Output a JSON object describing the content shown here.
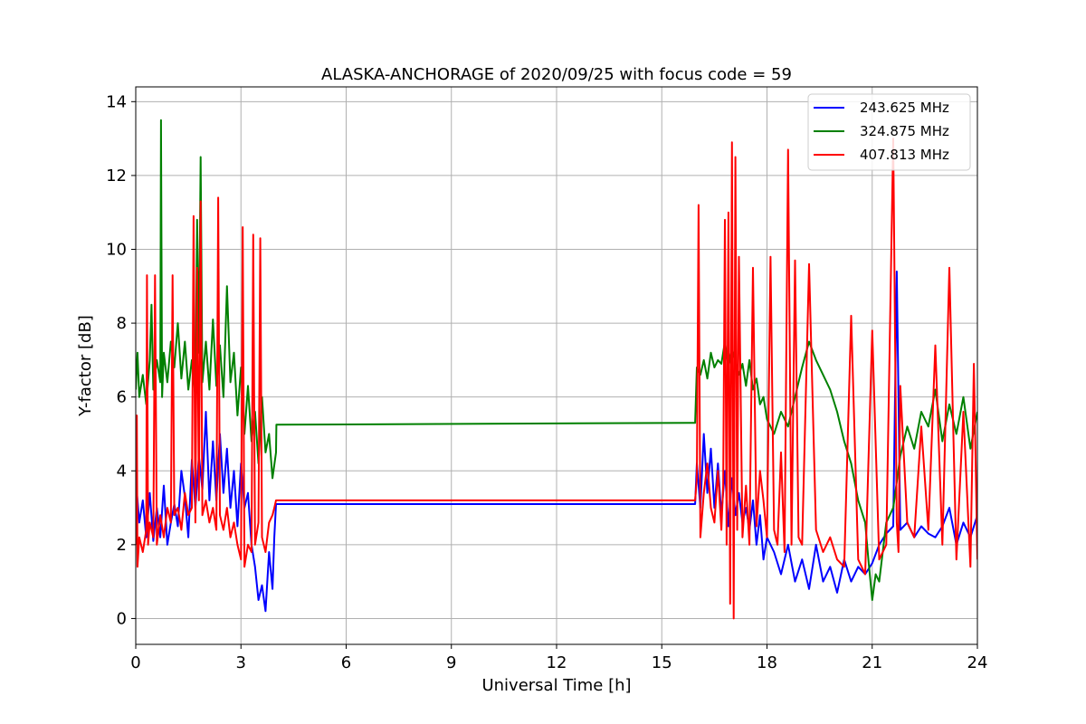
{
  "chart_data": {
    "type": "line",
    "title": "ALASKA-ANCHORAGE of 2020/09/25 with focus code = 59",
    "xlabel": "Universal Time [h]",
    "ylabel": "Y-factor [dB]",
    "xlim": [
      0,
      24
    ],
    "ylim": [
      -0.7,
      14.4
    ],
    "xticks": [
      0,
      3,
      6,
      9,
      12,
      15,
      18,
      21,
      24
    ],
    "yticks": [
      0,
      2,
      4,
      6,
      8,
      10,
      12,
      14
    ],
    "grid": true,
    "legend_position": "top-right",
    "series": [
      {
        "name": "243.625 MHz",
        "color": "#0000ff",
        "x": [
          0.0,
          0.1,
          0.2,
          0.3,
          0.4,
          0.5,
          0.6,
          0.7,
          0.8,
          0.9,
          1.0,
          1.1,
          1.2,
          1.3,
          1.4,
          1.5,
          1.6,
          1.7,
          1.8,
          1.9,
          2.0,
          2.1,
          2.2,
          2.3,
          2.4,
          2.5,
          2.6,
          2.7,
          2.8,
          2.9,
          3.0,
          3.1,
          3.2,
          3.3,
          3.4,
          3.5,
          3.6,
          3.7,
          3.8,
          3.9,
          3.95,
          4.0,
          15.95,
          16.0,
          16.1,
          16.2,
          16.3,
          16.4,
          16.5,
          16.6,
          16.7,
          16.8,
          16.9,
          17.0,
          17.1,
          17.2,
          17.3,
          17.4,
          17.5,
          17.6,
          17.7,
          17.8,
          17.9,
          18.0,
          18.2,
          18.4,
          18.6,
          18.8,
          19.0,
          19.2,
          19.4,
          19.6,
          19.8,
          20.0,
          20.2,
          20.4,
          20.6,
          20.8,
          21.0,
          21.2,
          21.4,
          21.6,
          21.7,
          21.8,
          22.0,
          22.2,
          22.4,
          22.6,
          22.8,
          23.0,
          23.2,
          23.4,
          23.6,
          23.8,
          24.0
        ],
        "y": [
          3.8,
          2.6,
          3.2,
          2.2,
          3.4,
          2.1,
          3.0,
          2.2,
          3.6,
          2.0,
          2.6,
          3.1,
          2.5,
          4.0,
          3.3,
          2.2,
          4.3,
          3.0,
          4.4,
          3.5,
          5.6,
          3.2,
          4.8,
          3.2,
          5.0,
          3.4,
          4.6,
          3.0,
          4.0,
          2.5,
          4.2,
          3.0,
          3.4,
          2.0,
          1.4,
          0.5,
          0.9,
          0.2,
          1.8,
          0.8,
          2.2,
          3.1,
          3.1,
          4.2,
          3.0,
          5.0,
          3.4,
          4.6,
          3.0,
          4.2,
          2.8,
          4.0,
          2.5,
          3.8,
          2.8,
          3.4,
          2.6,
          3.0,
          2.4,
          3.2,
          2.0,
          2.8,
          1.6,
          2.2,
          1.8,
          1.2,
          2.0,
          1.0,
          1.6,
          0.8,
          2.0,
          1.0,
          1.4,
          0.7,
          1.6,
          1.0,
          1.4,
          1.2,
          1.5,
          2.0,
          2.3,
          2.5,
          9.4,
          2.4,
          2.6,
          2.2,
          2.5,
          2.3,
          2.2,
          2.5,
          3.0,
          2.0,
          2.6,
          2.2,
          2.8
        ]
      },
      {
        "name": "324.875 MHz",
        "color": "#008000",
        "x": [
          0.0,
          0.05,
          0.1,
          0.2,
          0.3,
          0.4,
          0.45,
          0.5,
          0.6,
          0.7,
          0.72,
          0.75,
          0.8,
          0.9,
          1.0,
          1.1,
          1.2,
          1.3,
          1.4,
          1.5,
          1.6,
          1.7,
          1.75,
          1.8,
          1.85,
          1.9,
          2.0,
          2.1,
          2.2,
          2.3,
          2.4,
          2.5,
          2.6,
          2.7,
          2.8,
          2.9,
          3.0,
          3.1,
          3.2,
          3.3,
          3.4,
          3.5,
          3.6,
          3.7,
          3.8,
          3.9,
          4.0,
          4.01,
          15.95,
          16.0,
          16.1,
          16.2,
          16.3,
          16.4,
          16.5,
          16.6,
          16.7,
          16.8,
          16.9,
          17.0,
          17.1,
          17.2,
          17.3,
          17.4,
          17.5,
          17.6,
          17.7,
          17.8,
          17.9,
          18.0,
          18.2,
          18.4,
          18.6,
          18.8,
          19.0,
          19.2,
          19.4,
          19.6,
          19.8,
          20.0,
          20.2,
          20.4,
          20.6,
          20.8,
          20.9,
          21.0,
          21.1,
          21.2,
          21.4,
          21.6,
          21.8,
          22.0,
          22.2,
          22.4,
          22.6,
          22.8,
          23.0,
          23.2,
          23.4,
          23.6,
          23.8,
          24.0
        ],
        "y": [
          6.2,
          7.2,
          6.0,
          6.6,
          5.8,
          7.0,
          8.5,
          6.2,
          7.0,
          6.4,
          13.5,
          6.0,
          7.2,
          6.4,
          7.5,
          6.8,
          8.0,
          6.5,
          7.5,
          6.2,
          7.0,
          6.0,
          10.8,
          7.2,
          12.5,
          6.4,
          7.5,
          6.2,
          8.1,
          6.3,
          7.4,
          6.0,
          9.0,
          6.4,
          7.2,
          5.5,
          6.8,
          5.0,
          6.3,
          4.8,
          5.6,
          4.2,
          6.0,
          4.5,
          5.0,
          3.8,
          4.5,
          5.25,
          5.3,
          6.8,
          6.6,
          7.0,
          6.5,
          7.2,
          6.8,
          7.0,
          6.9,
          7.5,
          6.8,
          7.3,
          7.0,
          6.6,
          6.9,
          6.3,
          7.0,
          6.2,
          6.5,
          5.8,
          6.0,
          5.4,
          5.0,
          5.6,
          5.2,
          6.0,
          6.8,
          7.5,
          7.0,
          6.6,
          6.2,
          5.6,
          4.8,
          4.2,
          3.2,
          2.6,
          1.5,
          0.5,
          1.2,
          1.0,
          2.6,
          3.0,
          4.4,
          5.2,
          4.6,
          5.6,
          5.2,
          6.2,
          4.8,
          5.8,
          5.0,
          6.0,
          4.6,
          5.6
        ]
      },
      {
        "name": "407.813 MHz",
        "color": "#ff0000",
        "x": [
          0.0,
          0.03,
          0.05,
          0.1,
          0.2,
          0.3,
          0.32,
          0.35,
          0.4,
          0.5,
          0.55,
          0.6,
          0.7,
          0.8,
          0.9,
          1.0,
          1.05,
          1.1,
          1.2,
          1.3,
          1.4,
          1.5,
          1.6,
          1.65,
          1.7,
          1.75,
          1.8,
          1.85,
          1.9,
          2.0,
          2.1,
          2.2,
          2.3,
          2.35,
          2.4,
          2.5,
          2.6,
          2.7,
          2.8,
          2.9,
          3.0,
          3.05,
          3.1,
          3.2,
          3.3,
          3.35,
          3.4,
          3.5,
          3.55,
          3.6,
          3.7,
          3.8,
          3.9,
          3.95,
          4.0,
          15.95,
          16.0,
          16.05,
          16.1,
          16.2,
          16.3,
          16.4,
          16.5,
          16.6,
          16.7,
          16.75,
          16.8,
          16.85,
          16.9,
          16.95,
          17.0,
          17.05,
          17.1,
          17.15,
          17.2,
          17.3,
          17.4,
          17.5,
          17.6,
          17.7,
          17.8,
          17.9,
          18.0,
          18.1,
          18.2,
          18.3,
          18.4,
          18.5,
          18.6,
          18.7,
          18.8,
          18.9,
          19.0,
          19.2,
          19.4,
          19.6,
          19.8,
          20.0,
          20.2,
          20.4,
          20.6,
          20.8,
          21.0,
          21.2,
          21.4,
          21.6,
          21.7,
          21.75,
          21.8,
          22.0,
          22.2,
          22.4,
          22.6,
          22.8,
          23.0,
          23.2,
          23.4,
          23.6,
          23.8,
          23.9,
          24.0
        ],
        "y": [
          2.0,
          5.5,
          1.4,
          2.2,
          1.8,
          2.4,
          9.3,
          2.0,
          2.6,
          2.2,
          9.3,
          2.0,
          2.8,
          2.2,
          3.0,
          2.6,
          9.3,
          2.8,
          3.0,
          2.4,
          3.4,
          2.8,
          3.0,
          10.9,
          2.6,
          9.5,
          3.2,
          11.3,
          2.8,
          3.2,
          2.6,
          3.0,
          2.4,
          11.4,
          2.8,
          2.4,
          3.0,
          2.2,
          2.6,
          2.0,
          1.6,
          10.6,
          1.4,
          2.0,
          1.8,
          10.4,
          2.0,
          2.6,
          10.3,
          2.2,
          1.8,
          2.6,
          2.8,
          3.0,
          3.2,
          3.2,
          3.8,
          11.2,
          2.2,
          3.4,
          4.2,
          3.0,
          2.6,
          4.0,
          2.4,
          3.6,
          10.8,
          2.0,
          11.0,
          0.4,
          12.9,
          0.0,
          12.5,
          2.4,
          9.8,
          2.2,
          3.6,
          2.0,
          9.5,
          2.5,
          4.0,
          3.2,
          2.2,
          9.8,
          2.4,
          2.0,
          4.5,
          1.8,
          12.7,
          2.0,
          9.7,
          2.2,
          2.0,
          9.6,
          2.4,
          1.8,
          2.2,
          1.6,
          1.4,
          8.2,
          1.6,
          1.2,
          7.8,
          1.6,
          2.0,
          13.0,
          2.6,
          1.8,
          6.3,
          2.6,
          2.2,
          5.2,
          2.4,
          7.4,
          2.0,
          9.5,
          1.6,
          5.6,
          1.4,
          6.9,
          1.6
        ]
      }
    ]
  }
}
